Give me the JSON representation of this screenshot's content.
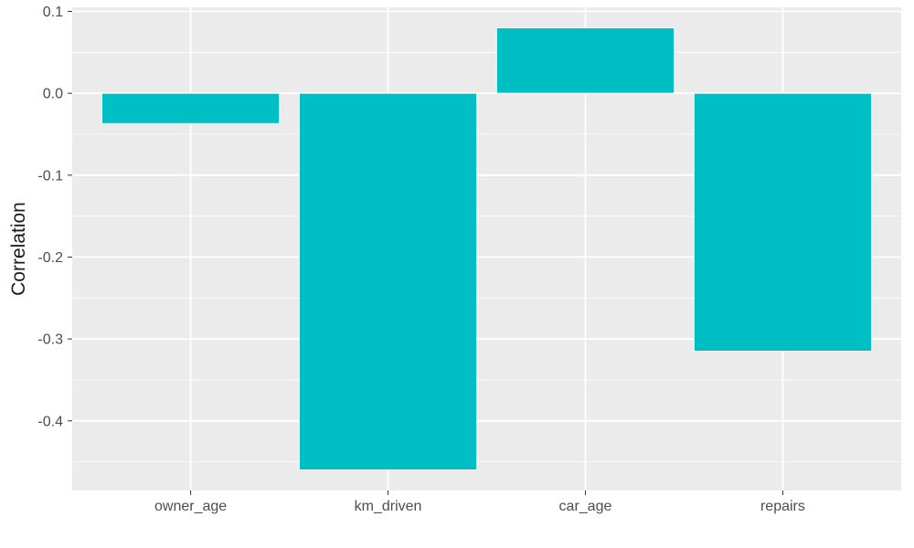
{
  "chart_data": {
    "type": "bar",
    "categories": [
      "owner_age",
      "km_driven",
      "car_age",
      "repairs"
    ],
    "values": [
      -0.037,
      -0.46,
      0.08,
      -0.315
    ],
    "title": "",
    "xlabel": "",
    "ylabel": "Correlation",
    "ylim": [
      -0.485,
      0.105
    ],
    "yticks": [
      0.1,
      0.0,
      -0.1,
      -0.2,
      -0.3,
      -0.4
    ],
    "ytick_labels": [
      "0.1",
      "0.0",
      "-0.1",
      "-0.2",
      "-0.3",
      "-0.4"
    ],
    "grid": true,
    "legend": "none",
    "colors": {
      "bar": "#00BFC4",
      "panel": "#EBEBEB",
      "grid": "#FFFFFF"
    }
  }
}
